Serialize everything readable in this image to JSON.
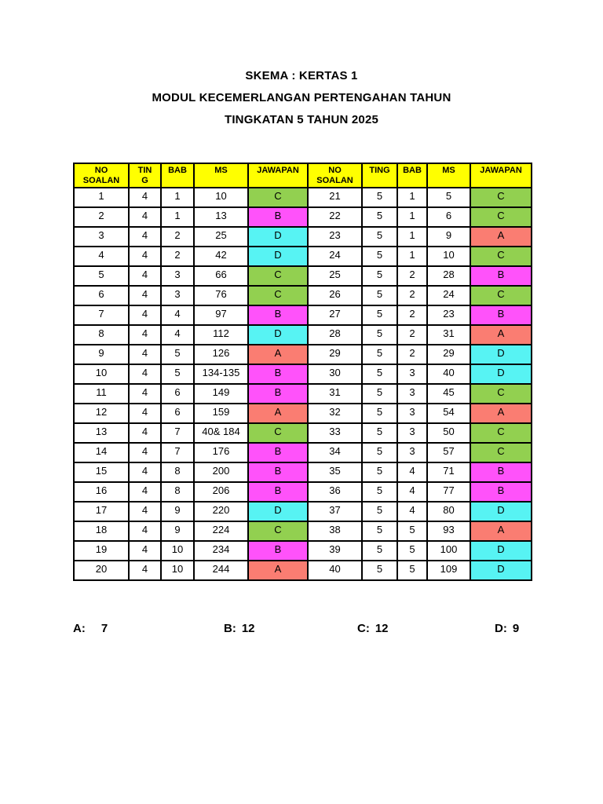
{
  "titles": {
    "line1": "SKEMA : KERTAS 1",
    "line2": "MODUL KECEMERLANGAN PERTENGAHAN TAHUN",
    "line3": "TINGKATAN 5 TAHUN 2025"
  },
  "table": {
    "header_bg": "#FFFF00",
    "answer_colors": {
      "A": "#FA7D72",
      "B": "#FF52FA",
      "C": "#92D050",
      "D": "#57F3F3"
    },
    "left_headers": [
      "NO\nSOALAN",
      "TIN\nG",
      "BAB",
      "MS",
      "JAWAPAN"
    ],
    "right_headers": [
      "NO\nSOALAN",
      "TING",
      "BAB",
      "MS",
      "JAWAPAN"
    ],
    "left_rows": [
      {
        "no": "1",
        "ting": "4",
        "bab": "1",
        "ms": "10",
        "jawapan": "C"
      },
      {
        "no": "2",
        "ting": "4",
        "bab": "1",
        "ms": "13",
        "jawapan": "B"
      },
      {
        "no": "3",
        "ting": "4",
        "bab": "2",
        "ms": "25",
        "jawapan": "D"
      },
      {
        "no": "4",
        "ting": "4",
        "bab": "2",
        "ms": "42",
        "jawapan": "D"
      },
      {
        "no": "5",
        "ting": "4",
        "bab": "3",
        "ms": "66",
        "jawapan": "C"
      },
      {
        "no": "6",
        "ting": "4",
        "bab": "3",
        "ms": "76",
        "jawapan": "C"
      },
      {
        "no": "7",
        "ting": "4",
        "bab": "4",
        "ms": "97",
        "jawapan": "B"
      },
      {
        "no": "8",
        "ting": "4",
        "bab": "4",
        "ms": "112",
        "jawapan": "D"
      },
      {
        "no": "9",
        "ting": "4",
        "bab": "5",
        "ms": "126",
        "jawapan": "A"
      },
      {
        "no": "10",
        "ting": "4",
        "bab": "5",
        "ms": "134-135",
        "jawapan": "B"
      },
      {
        "no": "11",
        "ting": "4",
        "bab": "6",
        "ms": "149",
        "jawapan": "B"
      },
      {
        "no": "12",
        "ting": "4",
        "bab": "6",
        "ms": "159",
        "jawapan": "A"
      },
      {
        "no": "13",
        "ting": "4",
        "bab": "7",
        "ms": "40& 184",
        "jawapan": "C"
      },
      {
        "no": "14",
        "ting": "4",
        "bab": "7",
        "ms": "176",
        "jawapan": "B"
      },
      {
        "no": "15",
        "ting": "4",
        "bab": "8",
        "ms": "200",
        "jawapan": "B"
      },
      {
        "no": "16",
        "ting": "4",
        "bab": "8",
        "ms": "206",
        "jawapan": "B"
      },
      {
        "no": "17",
        "ting": "4",
        "bab": "9",
        "ms": "220",
        "jawapan": "D"
      },
      {
        "no": "18",
        "ting": "4",
        "bab": "9",
        "ms": "224",
        "jawapan": "C"
      },
      {
        "no": "19",
        "ting": "4",
        "bab": "10",
        "ms": "234",
        "jawapan": "B"
      },
      {
        "no": "20",
        "ting": "4",
        "bab": "10",
        "ms": "244",
        "jawapan": "A"
      }
    ],
    "right_rows": [
      {
        "no": "21",
        "ting": "5",
        "bab": "1",
        "ms": "5",
        "jawapan": "C"
      },
      {
        "no": "22",
        "ting": "5",
        "bab": "1",
        "ms": "6",
        "jawapan": "C"
      },
      {
        "no": "23",
        "ting": "5",
        "bab": "1",
        "ms": "9",
        "jawapan": "A"
      },
      {
        "no": "24",
        "ting": "5",
        "bab": "1",
        "ms": "10",
        "jawapan": "C"
      },
      {
        "no": "25",
        "ting": "5",
        "bab": "2",
        "ms": "28",
        "jawapan": "B"
      },
      {
        "no": "26",
        "ting": "5",
        "bab": "2",
        "ms": "24",
        "jawapan": "C"
      },
      {
        "no": "27",
        "ting": "5",
        "bab": "2",
        "ms": "23",
        "jawapan": "B"
      },
      {
        "no": "28",
        "ting": "5",
        "bab": "2",
        "ms": "31",
        "jawapan": "A"
      },
      {
        "no": "29",
        "ting": "5",
        "bab": "2",
        "ms": "29",
        "jawapan": "D"
      },
      {
        "no": "30",
        "ting": "5",
        "bab": "3",
        "ms": "40",
        "jawapan": "D"
      },
      {
        "no": "31",
        "ting": "5",
        "bab": "3",
        "ms": "45",
        "jawapan": "C"
      },
      {
        "no": "32",
        "ting": "5",
        "bab": "3",
        "ms": "54",
        "jawapan": "A"
      },
      {
        "no": "33",
        "ting": "5",
        "bab": "3",
        "ms": "50",
        "jawapan": "C"
      },
      {
        "no": "34",
        "ting": "5",
        "bab": "3",
        "ms": "57",
        "jawapan": "C"
      },
      {
        "no": "35",
        "ting": "5",
        "bab": "4",
        "ms": "71",
        "jawapan": "B"
      },
      {
        "no": "36",
        "ting": "5",
        "bab": "4",
        "ms": "77",
        "jawapan": "B"
      },
      {
        "no": "37",
        "ting": "5",
        "bab": "4",
        "ms": "80",
        "jawapan": "D"
      },
      {
        "no": "38",
        "ting": "5",
        "bab": "5",
        "ms": "93",
        "jawapan": "A"
      },
      {
        "no": "39",
        "ting": "5",
        "bab": "5",
        "ms": "100",
        "jawapan": "D"
      },
      {
        "no": "40",
        "ting": "5",
        "bab": "5",
        "ms": "109",
        "jawapan": "D"
      }
    ]
  },
  "summary": [
    {
      "label": "A:",
      "value": "7"
    },
    {
      "label": "B:",
      "value": "12"
    },
    {
      "label": "C:",
      "value": "12"
    },
    {
      "label": "D:",
      "value": "9"
    }
  ]
}
